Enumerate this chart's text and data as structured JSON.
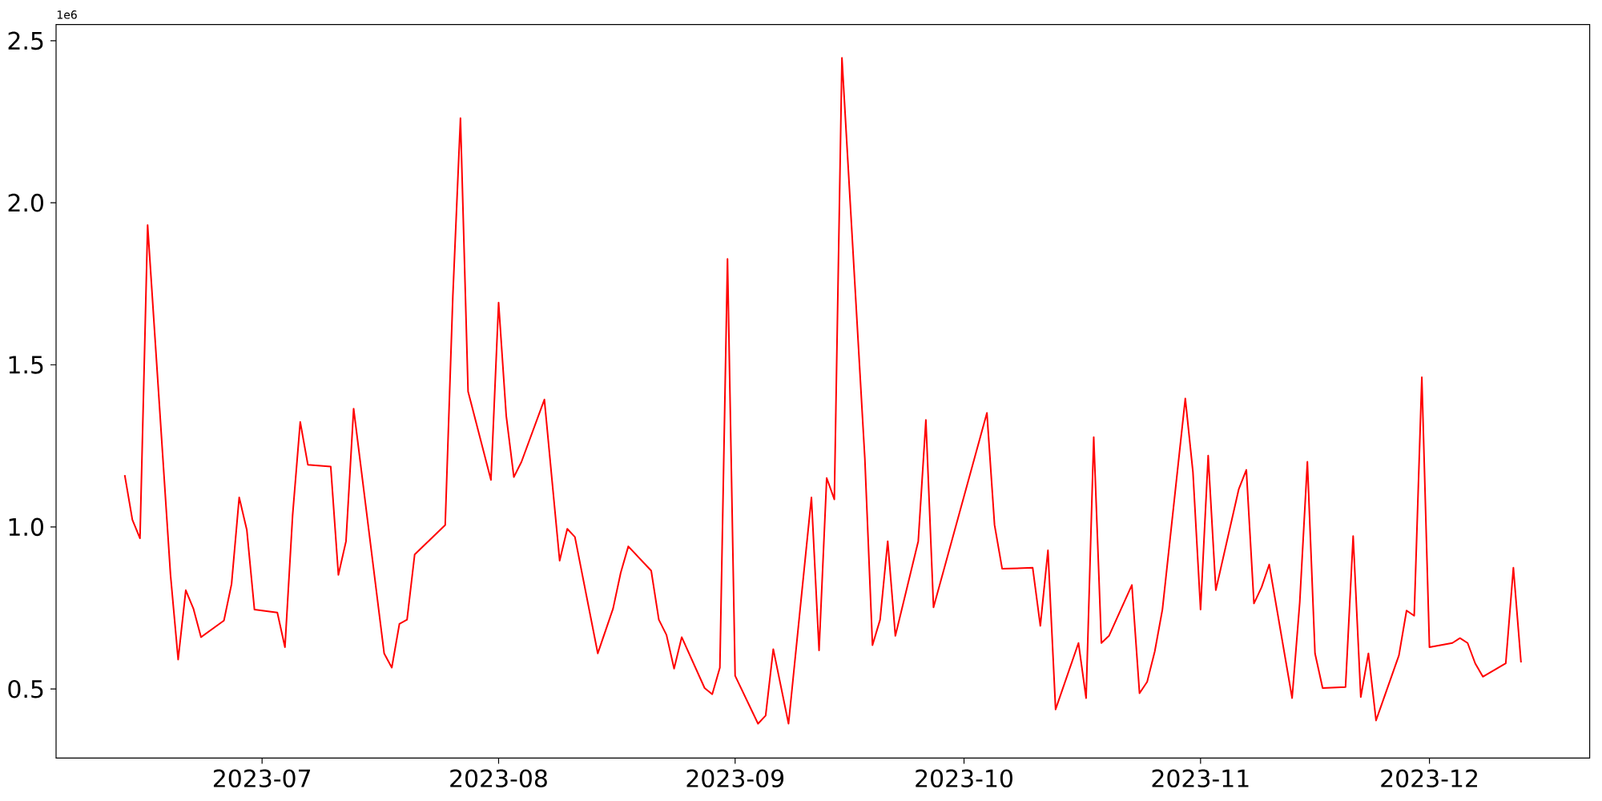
{
  "chart_data": {
    "type": "line",
    "annotations": [
      "1e6"
    ],
    "x": [
      "2023-06-13",
      "2023-06-14",
      "2023-06-15",
      "2023-06-16",
      "2023-06-19",
      "2023-06-20",
      "2023-06-21",
      "2023-06-22",
      "2023-06-23",
      "2023-06-26",
      "2023-06-27",
      "2023-06-28",
      "2023-06-29",
      "2023-06-30",
      "2023-07-03",
      "2023-07-04",
      "2023-07-05",
      "2023-07-06",
      "2023-07-07",
      "2023-07-10",
      "2023-07-11",
      "2023-07-12",
      "2023-07-13",
      "2023-07-17",
      "2023-07-18",
      "2023-07-19",
      "2023-07-20",
      "2023-07-21",
      "2023-07-25",
      "2023-07-26",
      "2023-07-27",
      "2023-07-28",
      "2023-07-31",
      "2023-08-01",
      "2023-08-02",
      "2023-08-03",
      "2023-08-04",
      "2023-08-07",
      "2023-08-09",
      "2023-08-10",
      "2023-08-11",
      "2023-08-14",
      "2023-08-16",
      "2023-08-17",
      "2023-08-18",
      "2023-08-21",
      "2023-08-22",
      "2023-08-23",
      "2023-08-24",
      "2023-08-25",
      "2023-08-28",
      "2023-08-29",
      "2023-08-30",
      "2023-08-31",
      "2023-09-01",
      "2023-09-04",
      "2023-09-05",
      "2023-09-06",
      "2023-09-08",
      "2023-09-11",
      "2023-09-12",
      "2023-09-13",
      "2023-09-14",
      "2023-09-15",
      "2023-09-18",
      "2023-09-19",
      "2023-09-20",
      "2023-09-21",
      "2023-09-22",
      "2023-09-25",
      "2023-09-26",
      "2023-09-27",
      "2023-10-04",
      "2023-10-05",
      "2023-10-06",
      "2023-10-10",
      "2023-10-11",
      "2023-10-12",
      "2023-10-13",
      "2023-10-16",
      "2023-10-17",
      "2023-10-18",
      "2023-10-19",
      "2023-10-20",
      "2023-10-23",
      "2023-10-24",
      "2023-10-25",
      "2023-10-26",
      "2023-10-27",
      "2023-10-30",
      "2023-10-31",
      "2023-11-01",
      "2023-11-02",
      "2023-11-03",
      "2023-11-06",
      "2023-11-07",
      "2023-11-08",
      "2023-11-09",
      "2023-11-10",
      "2023-11-13",
      "2023-11-14",
      "2023-11-15",
      "2023-11-16",
      "2023-11-17",
      "2023-11-20",
      "2023-11-21",
      "2023-11-22",
      "2023-11-23",
      "2023-11-24",
      "2023-11-27",
      "2023-11-28",
      "2023-11-29",
      "2023-11-30",
      "2023-12-01",
      "2023-12-04",
      "2023-12-05",
      "2023-12-06",
      "2023-12-07",
      "2023-12-08",
      "2023-12-11",
      "2023-12-12",
      "2023-12-13"
    ],
    "series": [
      {
        "color": "#ff0000",
        "values": [
          1.16,
          1.022,
          0.965,
          1.931,
          0.852,
          0.591,
          0.805,
          0.748,
          0.66,
          0.711,
          0.824,
          1.091,
          0.991,
          0.745,
          0.736,
          0.629,
          1.035,
          1.324,
          1.192,
          1.186,
          0.852,
          0.956,
          1.365,
          0.61,
          0.566,
          0.701,
          0.714,
          0.915,
          1.006,
          1.711,
          2.261,
          1.418,
          1.145,
          1.692,
          1.343,
          1.154,
          1.201,
          1.393,
          0.896,
          0.994,
          0.969,
          0.61,
          0.748,
          0.858,
          0.94,
          0.865,
          0.714,
          0.667,
          0.563,
          0.66,
          0.503,
          0.484,
          0.566,
          1.827,
          0.541,
          0.393,
          0.418,
          0.623,
          0.393,
          1.091,
          0.619,
          1.151,
          1.085,
          2.447,
          1.211,
          0.635,
          0.714,
          0.956,
          0.664,
          0.956,
          1.33,
          0.752,
          1.352,
          1.006,
          0.871,
          0.874,
          0.695,
          0.928,
          0.437,
          0.642,
          0.472,
          1.277,
          0.642,
          0.664,
          0.821,
          0.487,
          0.522,
          0.616,
          0.745,
          1.396,
          1.17,
          0.745,
          1.22,
          0.805,
          1.116,
          1.176,
          0.764,
          0.814,
          0.884,
          0.472,
          0.767,
          1.201,
          0.61,
          0.503,
          0.506,
          0.972,
          0.475,
          0.61,
          0.403,
          0.604,
          0.742,
          0.726,
          1.462,
          0.629,
          0.642,
          0.657,
          0.642,
          0.579,
          0.538,
          0.579,
          0.874,
          0.582
        ]
      }
    ],
    "xlim": [
      "2023-06-04",
      "2023-12-22"
    ],
    "xticks": [
      {
        "value": "2023-07-01",
        "label": "2023-07"
      },
      {
        "value": "2023-08-01",
        "label": "2023-08"
      },
      {
        "value": "2023-09-01",
        "label": "2023-09"
      },
      {
        "value": "2023-10-01",
        "label": "2023-10"
      },
      {
        "value": "2023-11-01",
        "label": "2023-11"
      },
      {
        "value": "2023-12-01",
        "label": "2023-12"
      }
    ],
    "ylim": [
      0.287,
      2.55
    ],
    "yticks": [
      {
        "value": 0.5,
        "label": "0.5"
      },
      {
        "value": 1.0,
        "label": "1.0"
      },
      {
        "value": 1.5,
        "label": "1.5"
      },
      {
        "value": 2.0,
        "label": "2.0"
      },
      {
        "value": 2.5,
        "label": "2.5"
      }
    ],
    "line_style": "solid"
  }
}
